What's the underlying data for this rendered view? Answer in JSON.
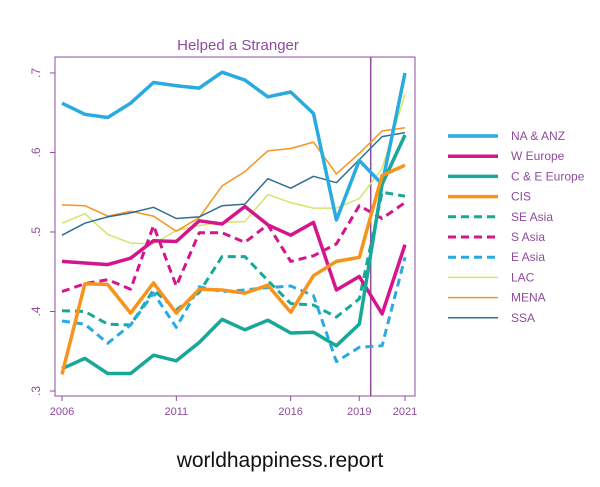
{
  "chart_data": {
    "type": "line",
    "title": "Helped a Stranger",
    "xlabel": "",
    "ylabel": "",
    "x": [
      2006,
      2007,
      2008,
      2009,
      2010,
      2011,
      2012,
      2013,
      2014,
      2015,
      2016,
      2017,
      2018,
      2019,
      2020,
      2021
    ],
    "xlim": [
      2006,
      2021
    ],
    "ylim": [
      0.3,
      0.71
    ],
    "x_ticks": [
      "2006",
      "2011",
      "2016",
      "2019",
      "2021"
    ],
    "x_tick_values": [
      2006,
      2011,
      2016,
      2019,
      2021
    ],
    "y_ticks": [
      ".3",
      ".4",
      ".5",
      ".6",
      ".7"
    ],
    "y_tick_values": [
      0.3,
      0.4,
      0.5,
      0.6,
      0.7
    ],
    "reference_line_x": 2019.5,
    "legend_position": "right",
    "series": [
      {
        "name": "NA & ANZ",
        "color": "#29abe2",
        "style": "solid",
        "width": 3.5,
        "values": [
          0.662,
          0.648,
          0.644,
          0.662,
          0.688,
          0.684,
          0.681,
          0.701,
          0.691,
          0.67,
          0.676,
          0.649,
          0.515,
          0.59,
          0.56,
          0.7
        ]
      },
      {
        "name": "W Europe",
        "color": "#d4168c",
        "style": "solid",
        "width": 3.5,
        "values": [
          0.463,
          0.461,
          0.459,
          0.467,
          0.489,
          0.488,
          0.514,
          0.51,
          0.532,
          0.509,
          0.496,
          0.512,
          0.427,
          0.444,
          0.397,
          0.484
        ]
      },
      {
        "name": "C & E Europe",
        "color": "#17a899",
        "style": "solid",
        "width": 3.5,
        "values": [
          0.328,
          0.341,
          0.322,
          0.322,
          0.345,
          0.338,
          0.361,
          0.39,
          0.377,
          0.389,
          0.373,
          0.374,
          0.357,
          0.384,
          0.56,
          0.622
        ]
      },
      {
        "name": "CIS",
        "color": "#f7941d",
        "style": "solid",
        "width": 3.5,
        "values": [
          0.321,
          0.435,
          0.434,
          0.398,
          0.436,
          0.398,
          0.428,
          0.427,
          0.423,
          0.433,
          0.399,
          0.445,
          0.463,
          0.468,
          0.571,
          0.584
        ]
      },
      {
        "name": "SE Asia",
        "color": "#17a899",
        "style": "dashed",
        "width": 3,
        "values": [
          0.401,
          0.4,
          0.384,
          0.383,
          0.427,
          0.402,
          0.424,
          0.469,
          0.469,
          0.439,
          0.41,
          0.408,
          0.393,
          0.416,
          0.55,
          0.545
        ]
      },
      {
        "name": "S Asia",
        "color": "#d4168c",
        "style": "dashed",
        "width": 3,
        "values": [
          0.425,
          0.435,
          0.44,
          0.428,
          0.508,
          0.432,
          0.499,
          0.499,
          0.487,
          0.509,
          0.463,
          0.47,
          0.485,
          0.533,
          0.517,
          0.537
        ]
      },
      {
        "name": "E Asia",
        "color": "#29abe2",
        "style": "dashed",
        "width": 3,
        "values": [
          0.388,
          0.384,
          0.36,
          0.383,
          0.423,
          0.38,
          0.431,
          0.425,
          0.427,
          0.43,
          0.432,
          0.42,
          0.337,
          0.355,
          0.357,
          0.468
        ]
      },
      {
        "name": "LAC",
        "color": "#d7e36a",
        "style": "solid",
        "width": 1.5,
        "values": [
          0.511,
          0.523,
          0.497,
          0.486,
          0.485,
          0.502,
          0.508,
          0.512,
          0.513,
          0.547,
          0.537,
          0.53,
          0.53,
          0.542,
          0.58,
          0.673
        ]
      },
      {
        "name": "MENA",
        "color": "#f7941d",
        "style": "solid",
        "width": 1.5,
        "values": [
          0.534,
          0.533,
          0.52,
          0.526,
          0.52,
          0.501,
          0.518,
          0.558,
          0.576,
          0.602,
          0.605,
          0.613,
          0.573,
          0.599,
          0.627,
          0.631
        ]
      },
      {
        "name": "SSA",
        "color": "#2f6f95",
        "style": "solid",
        "width": 1.5,
        "values": [
          0.496,
          0.511,
          0.519,
          0.524,
          0.531,
          0.517,
          0.519,
          0.533,
          0.535,
          0.567,
          0.555,
          0.57,
          0.562,
          0.591,
          0.62,
          0.625
        ]
      }
    ]
  },
  "footer": {
    "text": "worldhappiness.report"
  },
  "colors": {
    "accent": "#8e4b9c",
    "axis": "#8e4b9c"
  }
}
